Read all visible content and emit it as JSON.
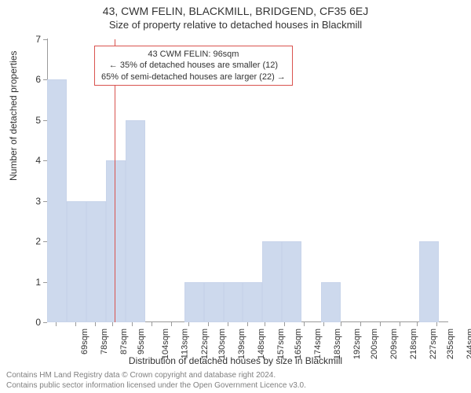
{
  "title_address": "43, CWM FELIN, BLACKMILL, BRIDGEND, CF35 6EJ",
  "title_sub": "Size of property relative to detached houses in Blackmill",
  "ylabel": "Number of detached properties",
  "xlabel": "Distribution of detached houses by size in Blackmill",
  "footer_line1": "Contains HM Land Registry data © Crown copyright and database right 2024.",
  "footer_line2": "Contains public sector information licensed under the Open Government Licence v3.0.",
  "annotation": {
    "line1": "43 CWM FELIN: 96sqm",
    "line2": "← 35% of detached houses are smaller (12)",
    "line3": "65% of semi-detached houses are larger (22) →",
    "border_color": "#d9534f",
    "bg_color": "#ffffff"
  },
  "chart": {
    "type": "histogram",
    "bar_fill": "#cdd9ed",
    "bar_stroke": "#c8d4ea",
    "axis_color": "#9a9a9a",
    "marker_color": "#d9534f",
    "marker_x": 96,
    "x_min": 65,
    "x_max": 249,
    "y_min": 0,
    "y_max": 7,
    "bin_width": 9,
    "bin_starts": [
      65,
      74,
      83,
      92,
      101,
      110,
      119,
      128,
      137,
      146,
      155,
      164,
      173,
      182,
      191,
      200,
      209,
      218,
      227,
      236,
      245
    ],
    "counts": [
      6,
      3,
      3,
      4,
      5,
      0,
      0,
      1,
      1,
      1,
      1,
      2,
      2,
      0,
      1,
      0,
      0,
      0,
      0,
      2,
      0
    ],
    "yticks": [
      0,
      1,
      2,
      3,
      4,
      5,
      6,
      7
    ],
    "xtick_vals": [
      69,
      78,
      87,
      95,
      104,
      113,
      122,
      130,
      139,
      148,
      157,
      165,
      174,
      183,
      192,
      200,
      209,
      218,
      227,
      235,
      244
    ],
    "xtick_labels": [
      "69sqm",
      "78sqm",
      "87sqm",
      "95sqm",
      "104sqm",
      "113sqm",
      "122sqm",
      "130sqm",
      "139sqm",
      "148sqm",
      "157sqm",
      "165sqm",
      "174sqm",
      "183sqm",
      "192sqm",
      "200sqm",
      "209sqm",
      "218sqm",
      "227sqm",
      "235sqm",
      "244sqm"
    ]
  }
}
